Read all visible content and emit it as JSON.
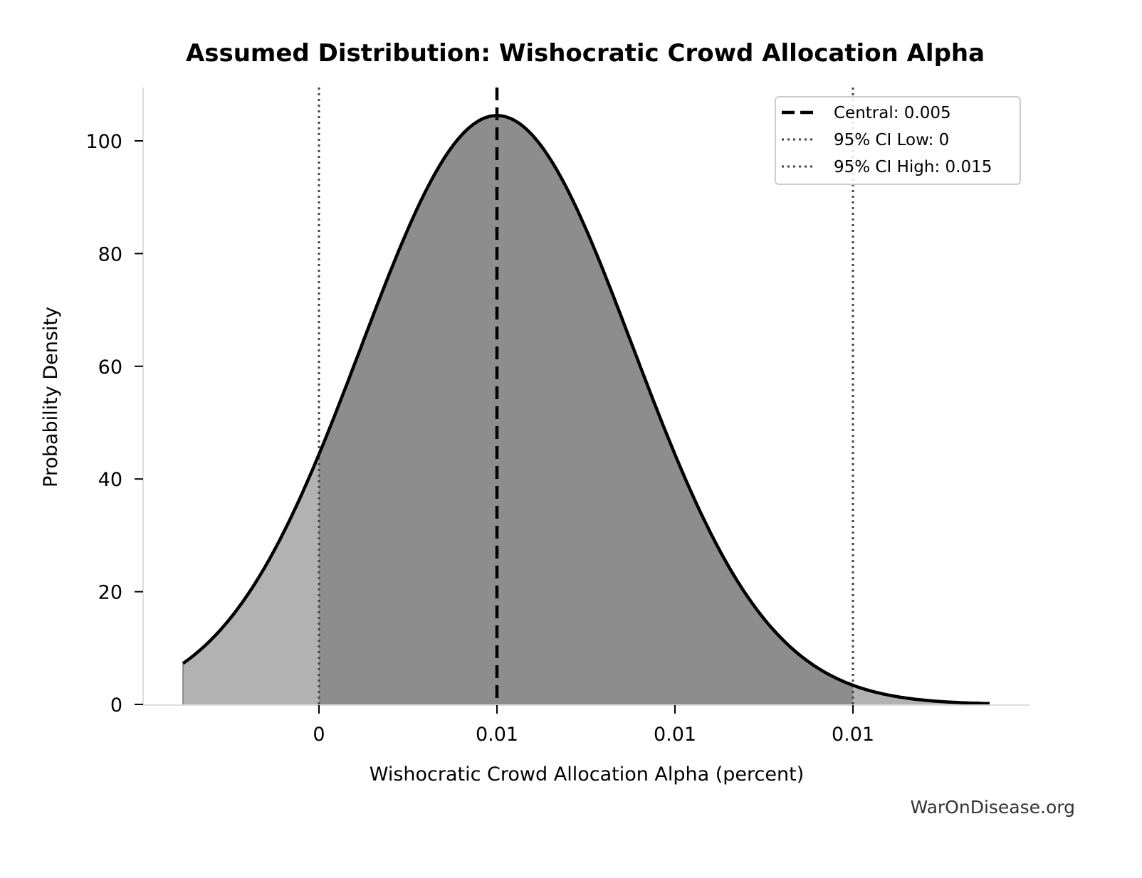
{
  "chart_data": {
    "type": "area",
    "title": "Assumed Distribution: Wishocratic Crowd Allocation Alpha",
    "xlabel": "Wishocratic Crowd Allocation Alpha (percent)",
    "ylabel": "Probability Density",
    "x_ticks": [
      {
        "value": 0,
        "label": "0"
      },
      {
        "value": 0.005,
        "label": "0.01"
      },
      {
        "value": 0.01,
        "label": "0.01"
      },
      {
        "value": 0.015,
        "label": "0.01"
      }
    ],
    "y_ticks": [
      {
        "value": 0,
        "label": "0"
      },
      {
        "value": 20,
        "label": "20"
      },
      {
        "value": 40,
        "label": "40"
      },
      {
        "value": 60,
        "label": "60"
      },
      {
        "value": 80,
        "label": "80"
      },
      {
        "value": 100,
        "label": "100"
      }
    ],
    "xlim": [
      -0.00494,
      0.0199
    ],
    "ylim": [
      0,
      109.5
    ],
    "grid": false,
    "distribution": {
      "shape": "normal",
      "mean": 0.005,
      "std": 0.00382,
      "peak_density": 104.5,
      "x_start": -0.00382,
      "x_end": 0.01884
    },
    "points": {
      "x": [
        -0.00382,
        -0.002,
        0,
        0.002,
        0.004,
        0.005,
        0.006,
        0.008,
        0.01,
        0.012,
        0.015,
        0.018,
        0.01884
      ],
      "y": [
        7.2,
        19.2,
        44.4,
        76.1,
        101.3,
        104.5,
        101.3,
        76.1,
        44.4,
        19.2,
        3.4,
        0.3,
        0.2
      ]
    },
    "shaded_region": {
      "x_from": 0,
      "x_to": 0.015,
      "label": "95% CI"
    },
    "reference_lines": [
      {
        "name": "central",
        "x": 0.005,
        "style": "dashed",
        "color": "#000000"
      },
      {
        "name": "ci_low",
        "x": 0,
        "style": "dotted",
        "color": "#444444"
      },
      {
        "name": "ci_high",
        "x": 0.015,
        "style": "dotted",
        "color": "#444444"
      }
    ],
    "legend": {
      "position": "upper right",
      "entries": [
        {
          "label": "Central: 0.005",
          "style": "dashed"
        },
        {
          "label": "95% CI Low: 0",
          "style": "dotted"
        },
        {
          "label": "95% CI High: 0.015",
          "style": "dotted"
        }
      ]
    },
    "colors": {
      "fill_outer": "#b2b2b2",
      "fill_ci": "#8d8d8d",
      "curve": "#000000",
      "axis": "#dddddd"
    }
  },
  "watermark": "WarOnDisease.org"
}
